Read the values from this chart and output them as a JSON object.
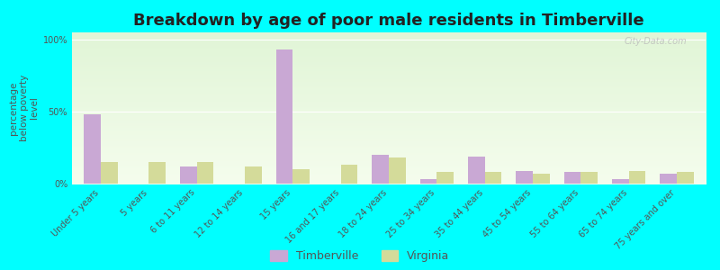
{
  "title": "Breakdown by age of poor male residents in Timberville",
  "ylabel": "percentage\nbelow poverty\nlevel",
  "categories": [
    "Under 5 years",
    "5 years",
    "6 to 11 years",
    "12 to 14 years",
    "15 years",
    "16 and 17 years",
    "18 to 24 years",
    "25 to 34 years",
    "35 to 44 years",
    "45 to 54 years",
    "55 to 64 years",
    "65 to 74 years",
    "75 years and over"
  ],
  "timberville": [
    48,
    0,
    12,
    0,
    93,
    0,
    20,
    3,
    19,
    9,
    8,
    3,
    7
  ],
  "virginia": [
    15,
    15,
    15,
    12,
    10,
    13,
    18,
    8,
    8,
    7,
    8,
    9,
    8
  ],
  "timberville_color": "#c9a8d4",
  "virginia_color": "#d4db9a",
  "background_color": "#00ffff",
  "bar_width": 0.35,
  "ylim": [
    0,
    105
  ],
  "yticks": [
    0,
    50,
    100
  ],
  "ytick_labels": [
    "0%",
    "50%",
    "100%"
  ],
  "title_fontsize": 13,
  "axis_label_fontsize": 7.5,
  "tick_fontsize": 7,
  "legend_fontsize": 9,
  "watermark": "City-Data.com"
}
